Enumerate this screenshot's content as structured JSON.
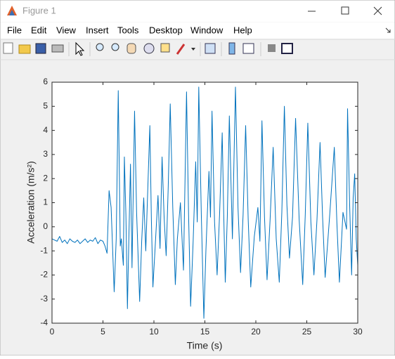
{
  "window": {
    "title": "Figure 1",
    "menu": [
      "File",
      "Edit",
      "View",
      "Insert",
      "Tools",
      "Desktop",
      "Window",
      "Help"
    ]
  },
  "chart_data": {
    "type": "line",
    "xlabel": "Time (s)",
    "ylabel": "Acceleration (m/s²)",
    "color": "#0072bd",
    "xlim": [
      0,
      30
    ],
    "xticks": [
      0,
      5,
      10,
      15,
      20,
      25,
      30
    ],
    "ylim": [
      -4,
      6
    ],
    "yticks": [
      -4,
      -3,
      -2,
      -1,
      0,
      1,
      2,
      3,
      4,
      5,
      6
    ],
    "x": [
      0,
      0.25,
      0.5,
      0.75,
      1,
      1.25,
      1.5,
      1.75,
      2,
      2.25,
      2.5,
      2.75,
      3,
      3.25,
      3.5,
      3.75,
      4,
      4.25,
      4.5,
      4.75,
      5,
      5.2,
      5.4,
      5.6,
      5.8,
      6.1,
      6.3,
      6.5,
      6.7,
      6.8,
      7.0,
      7.1,
      7.25,
      7.4,
      7.55,
      7.7,
      7.85,
      8.1,
      8.3,
      8.6,
      8.8,
      9.0,
      9.2,
      9.6,
      9.75,
      9.9,
      10.1,
      10.4,
      10.6,
      10.8,
      11.0,
      11.2,
      11.4,
      11.6,
      11.85,
      12.1,
      12.3,
      12.6,
      12.9,
      13.2,
      13.4,
      13.6,
      13.85,
      14.1,
      14.25,
      14.4,
      14.65,
      14.9,
      15.1,
      15.4,
      15.55,
      15.7,
      15.95,
      16.2,
      16.45,
      16.7,
      16.85,
      17.0,
      17.2,
      17.4,
      17.7,
      18.0,
      18.25,
      18.5,
      18.75,
      19.0,
      19.25,
      19.5,
      19.85,
      20.2,
      20.4,
      20.6,
      20.85,
      21.1,
      21.4,
      21.7,
      22.0,
      22.3,
      22.55,
      22.8,
      23.05,
      23.3,
      23.6,
      23.9,
      24.25,
      24.6,
      24.85,
      25.1,
      25.4,
      25.7,
      26.0,
      26.3,
      26.55,
      26.8,
      27.25,
      27.7,
      27.95,
      28.2,
      28.55,
      28.9,
      29.0,
      29.2,
      29.4,
      29.55,
      29.7,
      29.85,
      30
    ],
    "values": [
      -0.5,
      -0.55,
      -0.6,
      -0.4,
      -0.65,
      -0.55,
      -0.7,
      -0.5,
      -0.6,
      -0.65,
      -0.55,
      -0.7,
      -0.6,
      -0.5,
      -0.65,
      -0.55,
      -0.6,
      -0.45,
      -0.7,
      -0.55,
      -0.6,
      -0.8,
      -1.1,
      1.5,
      0.8,
      -2.7,
      -0.5,
      5.65,
      -0.8,
      -0.5,
      -1.6,
      2.9,
      0.5,
      -3.4,
      -0.3,
      2.6,
      -1.7,
      4.8,
      0.6,
      -3.1,
      -0.6,
      1.2,
      -1.0,
      4.2,
      0.3,
      -2.5,
      -1.0,
      1.3,
      -0.9,
      2.9,
      0.4,
      -1.2,
      1.6,
      5.1,
      0.8,
      -2.4,
      -0.5,
      1.0,
      -1.8,
      5.6,
      0.5,
      -3.3,
      -0.6,
      2.7,
      0.2,
      5.8,
      0.5,
      -3.8,
      -1.0,
      2.3,
      0.4,
      4.8,
      0.2,
      -2.0,
      0.6,
      3.9,
      0.5,
      -2.3,
      0.4,
      4.6,
      -0.5,
      5.8,
      0.8,
      -1.9,
      0.5,
      4.2,
      0.3,
      -2.5,
      -0.4,
      0.8,
      -0.6,
      4.4,
      0.4,
      -2.2,
      0.3,
      3.3,
      -0.5,
      -2.3,
      0.6,
      5.0,
      0.9,
      -1.3,
      0.4,
      4.5,
      0.3,
      -2.4,
      0.5,
      4.3,
      0.2,
      -2.0,
      0.3,
      3.5,
      0.4,
      -2.1,
      0.5,
      3.3,
      0.2,
      -2.3,
      0.6,
      -0.1,
      4.9,
      1.0,
      -2.0,
      1.2,
      2.2,
      -0.5,
      -1.6
    ]
  }
}
